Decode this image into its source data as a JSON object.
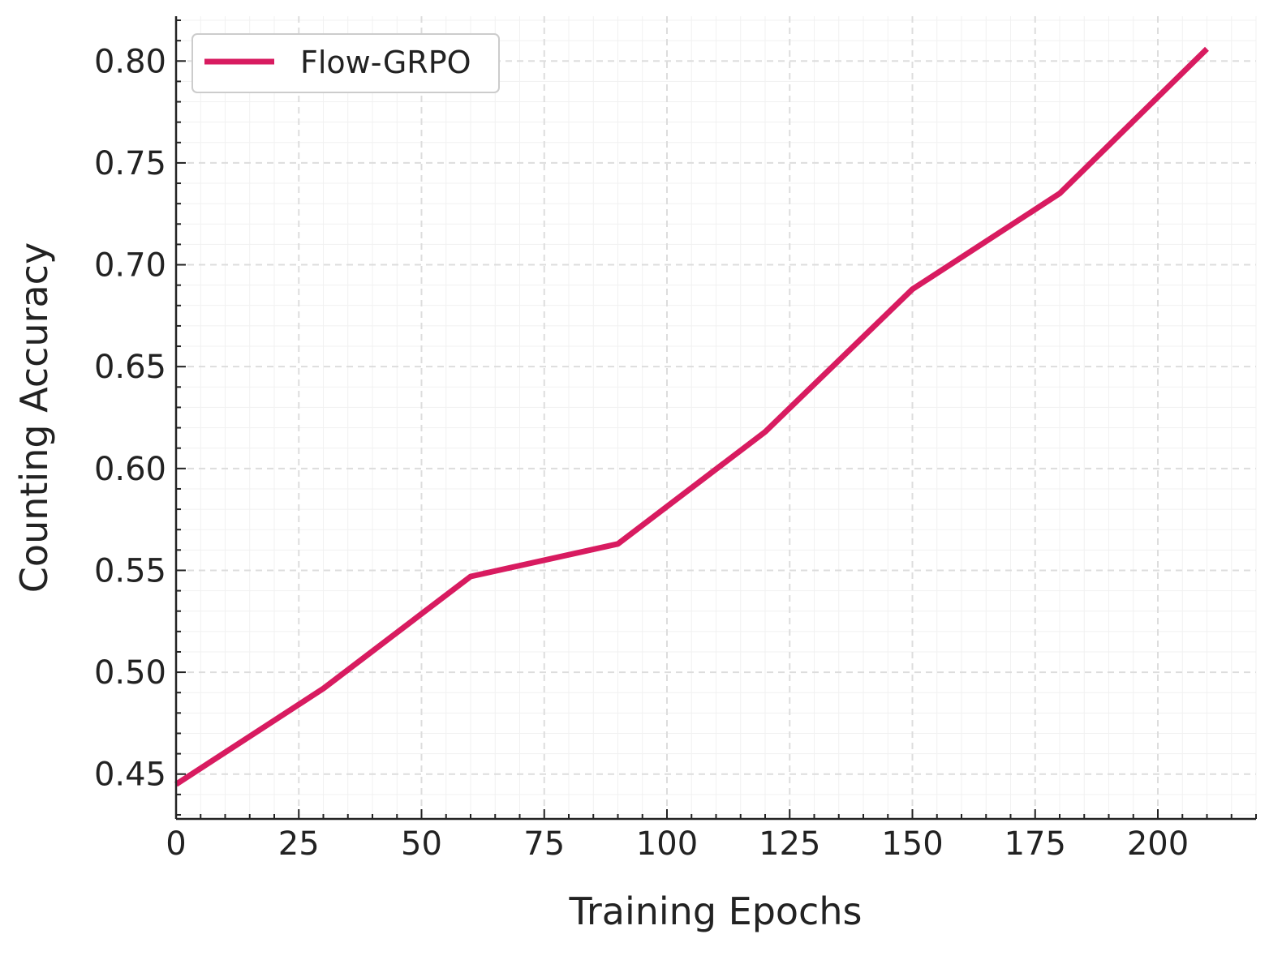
{
  "chart_data": {
    "type": "line",
    "title": "",
    "xlabel": "Training Epochs",
    "ylabel": "Counting Accuracy",
    "xlim": [
      0,
      220
    ],
    "ylim": [
      0.428,
      0.822
    ],
    "xticks": [
      0,
      25,
      50,
      75,
      100,
      125,
      150,
      175,
      200
    ],
    "xtick_labels": [
      "0",
      "25",
      "50",
      "75",
      "100",
      "125",
      "150",
      "175",
      "200"
    ],
    "yticks": [
      0.45,
      0.5,
      0.55,
      0.6,
      0.65,
      0.7,
      0.75,
      0.8
    ],
    "ytick_labels": [
      "0.45",
      "0.50",
      "0.55",
      "0.60",
      "0.65",
      "0.70",
      "0.75",
      "0.80"
    ],
    "grid": true,
    "legend_position": "top-left",
    "series": [
      {
        "name": "Flow-GRPO",
        "color": "#d81b60",
        "x": [
          0,
          30,
          60,
          90,
          120,
          150,
          180,
          210
        ],
        "y": [
          0.445,
          0.492,
          0.547,
          0.563,
          0.618,
          0.688,
          0.735,
          0.806
        ]
      }
    ]
  },
  "colors": {
    "axis": "#222222",
    "grid_major": "#dddddd",
    "grid_minor": "#f1f1f1",
    "legend_border": "#cccccc"
  }
}
